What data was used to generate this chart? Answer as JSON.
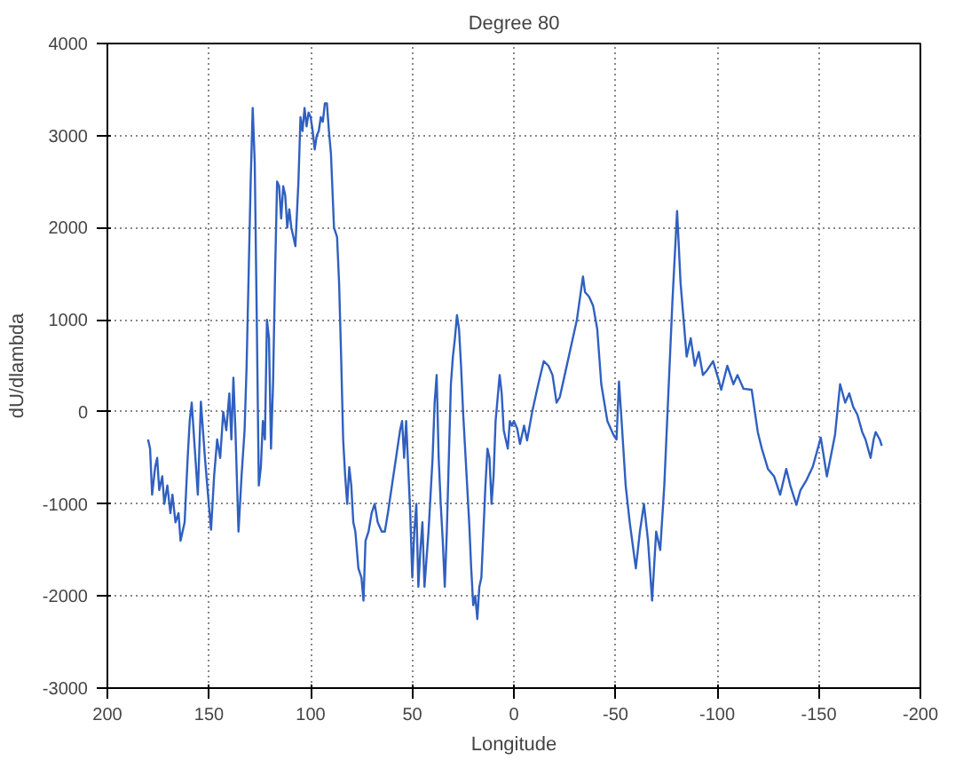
{
  "chart_data": {
    "type": "line",
    "title": "Degree 80",
    "xlabel": "Longitude",
    "ylabel": "dU/dlambda",
    "xlim": [
      200,
      -200
    ],
    "xticks": [
      200,
      150,
      100,
      50,
      0,
      -50,
      -100,
      -150,
      -200
    ],
    "ylim": [
      -3000,
      4000
    ],
    "yticks": [
      -3000,
      -2000,
      -1000,
      0,
      1000,
      2000,
      3000,
      4000
    ],
    "grid": true,
    "marker": "none",
    "line_style": "solid",
    "series": [
      {
        "color": "#3060c0",
        "x": [
          180,
          179,
          178,
          176.5,
          175.5,
          174.5,
          173,
          172,
          170.5,
          169,
          168,
          166.5,
          165,
          164,
          162,
          160.5,
          159.5,
          158.5,
          157,
          155.5,
          154,
          152,
          150.5,
          149,
          147.5,
          146,
          144.5,
          143,
          141.5,
          140,
          139,
          138,
          137,
          135.5,
          134,
          132.5,
          131.5,
          130.5,
          129.5,
          128.5,
          127.5,
          126.5,
          125.5,
          124.5,
          123.5,
          122.5,
          121.5,
          120.5,
          119.5,
          118.5,
          117.5,
          116.5,
          115.5,
          114.5,
          113.5,
          112.5,
          111.5,
          110.5,
          109.5,
          108.5,
          107.5,
          106,
          105,
          104,
          103,
          102,
          101,
          100,
          99,
          98,
          97,
          96,
          95,
          94,
          93,
          92,
          91,
          90,
          88.5,
          87,
          86,
          85,
          84,
          83,
          82,
          81,
          80,
          79,
          78,
          76.5,
          75,
          74,
          73,
          71.5,
          70,
          68.5,
          67,
          65,
          63.5,
          62,
          60,
          58,
          56,
          55,
          54,
          53,
          52,
          51,
          50,
          49,
          48,
          47,
          46,
          45,
          44,
          43,
          42,
          41,
          40,
          39,
          38,
          37,
          36,
          35,
          34,
          33,
          32,
          31,
          30,
          29,
          28,
          27,
          26,
          25,
          24,
          23,
          22,
          21,
          20,
          19,
          18,
          17,
          16,
          15,
          14,
          13,
          12,
          11,
          10,
          9,
          8,
          7,
          6,
          5,
          4,
          3,
          2,
          1,
          0,
          -1.6,
          -3,
          -5,
          -6.5,
          -9,
          -12,
          -14.7,
          -17,
          -19,
          -21,
          -22.6,
          -25,
          -28,
          -31,
          -34,
          -35,
          -37,
          -39,
          -41,
          -43,
          -46,
          -49,
          -50.5,
          -51.7,
          -53,
          -55,
          -57,
          -60,
          -62,
          -64,
          -66,
          -68,
          -70,
          -72,
          -74,
          -76,
          -78,
          -80.3,
          -82,
          -83.5,
          -85,
          -87,
          -89,
          -91,
          -93,
          -95,
          -98,
          -100.7,
          -102,
          -105,
          -108,
          -110,
          -113,
          -117,
          -120,
          -122,
          -125,
          -128,
          -131,
          -134,
          -136,
          -139,
          -141,
          -144,
          -147,
          -151,
          -154,
          -158,
          -160.5,
          -163,
          -165,
          -167,
          -169,
          -171.4,
          -173,
          -175.5,
          -177,
          -178,
          -180,
          -181
        ],
        "values": [
          -300,
          -400,
          -900,
          -600,
          -500,
          -850,
          -700,
          -1000,
          -800,
          -1100,
          -900,
          -1200,
          -1100,
          -1400,
          -1200,
          -500,
          -100,
          100,
          -400,
          -900,
          110,
          -500,
          -900,
          -1280,
          -700,
          -300,
          -500,
          0,
          -200,
          200,
          -300,
          370,
          -200,
          -1300,
          -700,
          -200,
          500,
          1500,
          2500,
          3300,
          2700,
          1000,
          -800,
          -600,
          -100,
          -300,
          1000,
          800,
          -400,
          300,
          1500,
          2500,
          2450,
          2100,
          2450,
          2350,
          2000,
          2200,
          2000,
          1900,
          1800,
          2500,
          3200,
          3050,
          3300,
          3100,
          3250,
          3200,
          3050,
          2850,
          3000,
          3050,
          3200,
          3150,
          3350,
          3350,
          3050,
          2800,
          2000,
          1900,
          1400,
          600,
          -300,
          -700,
          -1000,
          -600,
          -800,
          -1200,
          -1300,
          -1700,
          -1800,
          -2050,
          -1400,
          -1300,
          -1100,
          -1000,
          -1200,
          -1300,
          -1300,
          -1100,
          -800,
          -500,
          -200,
          -100,
          -500,
          -100,
          -600,
          -1100,
          -1800,
          -1300,
          -1000,
          -1900,
          -1500,
          -1200,
          -1900,
          -1600,
          -1300,
          -900,
          -500,
          100,
          400,
          -500,
          -1000,
          -1400,
          -1900,
          -1300,
          -500,
          300,
          600,
          800,
          1050,
          900,
          500,
          0,
          -400,
          -800,
          -1200,
          -1700,
          -2100,
          -2000,
          -2250,
          -1900,
          -1800,
          -1300,
          -800,
          -400,
          -500,
          -1000,
          -700,
          -100,
          150,
          400,
          200,
          -200,
          -300,
          -400,
          -100,
          -150,
          -100,
          -180,
          -350,
          -150,
          -310,
          0,
          300,
          550,
          500,
          400,
          100,
          160,
          400,
          700,
          1000,
          1470,
          1300,
          1250,
          1150,
          900,
          300,
          -100,
          -250,
          -300,
          330,
          -100,
          -800,
          -1200,
          -1700,
          -1300,
          -1000,
          -1400,
          -2050,
          -1300,
          -1500,
          -800,
          200,
          1200,
          2180,
          1400,
          1000,
          600,
          800,
          500,
          650,
          400,
          450,
          550,
          350,
          240,
          500,
          300,
          400,
          250,
          240,
          -220,
          -400,
          -620,
          -700,
          -900,
          -620,
          -800,
          -1010,
          -850,
          -740,
          -600,
          -280,
          -700,
          -250,
          300,
          100,
          200,
          50,
          -30,
          -220,
          -300,
          -500,
          -300,
          -220,
          -300,
          -370
        ]
      }
    ]
  }
}
